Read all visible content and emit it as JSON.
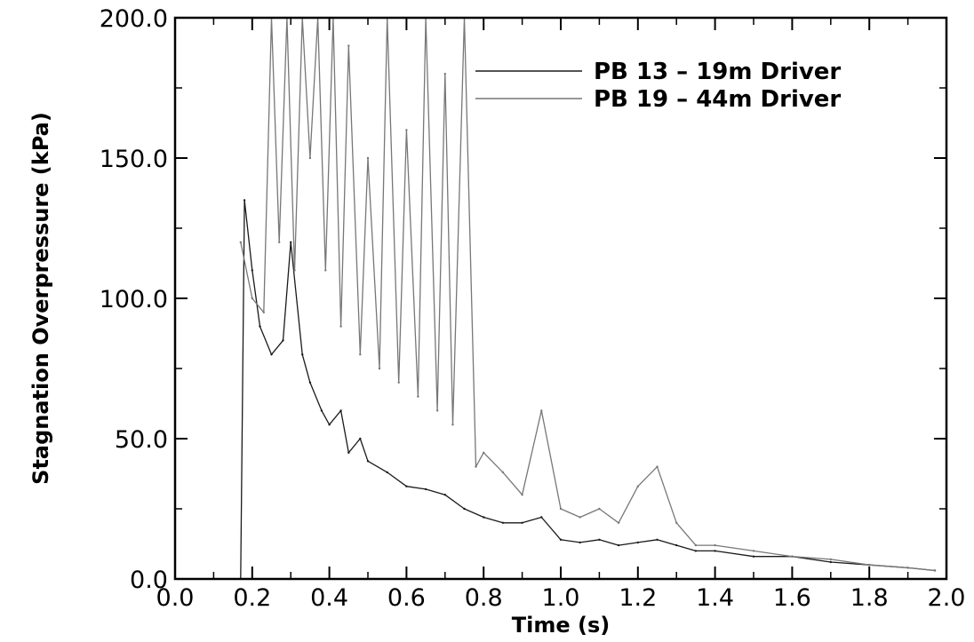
{
  "chart_data": {
    "type": "line",
    "title": "",
    "xlabel": "Time (s)",
    "ylabel": "Stagnation Overpressure (kPa)",
    "xlim": [
      0.0,
      2.0
    ],
    "ylim": [
      0.0,
      200.0
    ],
    "x_ticks": [
      "0.0",
      "0.2",
      "0.4",
      "0.6",
      "0.8",
      "1.0",
      "1.2",
      "1.4",
      "1.6",
      "1.8",
      "2.0"
    ],
    "y_ticks": [
      "0.0",
      "50.0",
      "100.0",
      "150.0",
      "200.0"
    ],
    "grid": false,
    "legend_position": "top-right",
    "series": [
      {
        "name": "PB 13 – 19m Driver",
        "color": "#1a1a1a",
        "x": [
          0.17,
          0.18,
          0.2,
          0.22,
          0.25,
          0.28,
          0.3,
          0.33,
          0.35,
          0.38,
          0.4,
          0.43,
          0.45,
          0.48,
          0.5,
          0.55,
          0.6,
          0.65,
          0.7,
          0.75,
          0.8,
          0.85,
          0.9,
          0.95,
          1.0,
          1.05,
          1.1,
          1.15,
          1.2,
          1.25,
          1.3,
          1.35,
          1.4,
          1.5,
          1.6,
          1.7,
          1.8,
          1.9,
          1.97
        ],
        "y": [
          0,
          135,
          110,
          90,
          80,
          85,
          120,
          80,
          70,
          60,
          55,
          60,
          45,
          50,
          42,
          38,
          33,
          32,
          30,
          25,
          22,
          20,
          20,
          22,
          14,
          13,
          14,
          12,
          13,
          14,
          12,
          10,
          10,
          8,
          8,
          6,
          5,
          4,
          3
        ]
      },
      {
        "name": "PB 19 – 44m Driver",
        "color": "#777777",
        "x": [
          0.17,
          0.2,
          0.23,
          0.25,
          0.27,
          0.29,
          0.31,
          0.33,
          0.35,
          0.37,
          0.39,
          0.41,
          0.43,
          0.45,
          0.48,
          0.5,
          0.53,
          0.55,
          0.58,
          0.6,
          0.63,
          0.65,
          0.68,
          0.7,
          0.72,
          0.75,
          0.78,
          0.8,
          0.85,
          0.9,
          0.95,
          1.0,
          1.05,
          1.1,
          1.15,
          1.2,
          1.25,
          1.3,
          1.35,
          1.4,
          1.5,
          1.6,
          1.7,
          1.8,
          1.9,
          1.97
        ],
        "y": [
          120,
          100,
          95,
          200,
          120,
          200,
          110,
          200,
          150,
          200,
          110,
          200,
          90,
          190,
          80,
          150,
          75,
          200,
          70,
          160,
          65,
          200,
          60,
          180,
          55,
          200,
          40,
          45,
          38,
          30,
          60,
          25,
          22,
          25,
          20,
          33,
          40,
          20,
          12,
          12,
          10,
          8,
          7,
          5,
          4,
          3
        ]
      }
    ]
  }
}
